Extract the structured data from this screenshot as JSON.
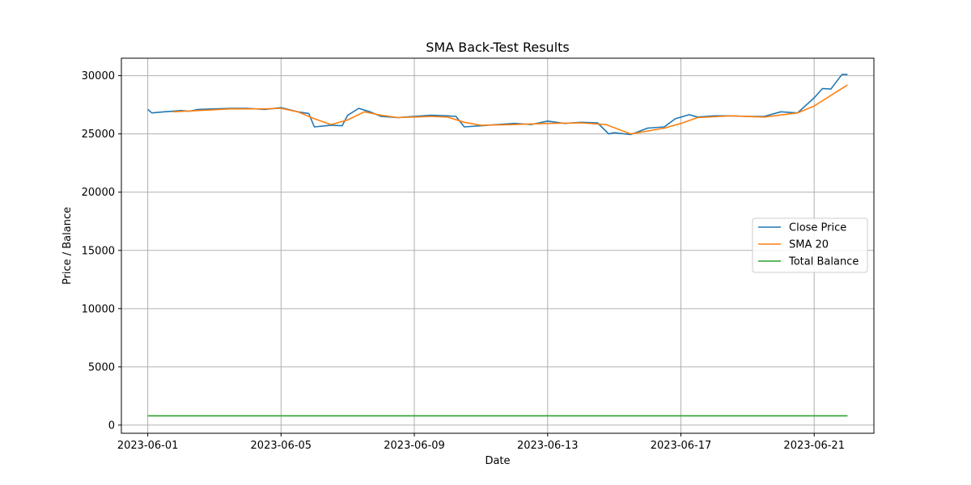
{
  "chart_data": {
    "type": "line",
    "title": "SMA Back-Test Results",
    "xlabel": "Date",
    "ylabel": "Price / Balance",
    "xlim": [
      "2023-05-31T05:00",
      "2023-06-22T19:00"
    ],
    "ylim": [
      -700,
      31500
    ],
    "x_ticks": [
      "2023-06-01",
      "2023-06-05",
      "2023-06-09",
      "2023-06-13",
      "2023-06-17",
      "2023-06-21"
    ],
    "y_ticks": [
      0,
      5000,
      10000,
      15000,
      20000,
      25000,
      30000
    ],
    "grid": true,
    "legend_position": "center-right",
    "series": [
      {
        "name": "Close Price",
        "color": "#1f77b4",
        "points": [
          [
            "2023-06-01T00:00",
            27100
          ],
          [
            "2023-06-01T03:00",
            26800
          ],
          [
            "2023-06-01T12:00",
            26900
          ],
          [
            "2023-06-02T00:00",
            27000
          ],
          [
            "2023-06-02T06:00",
            26950
          ],
          [
            "2023-06-02T12:00",
            27100
          ],
          [
            "2023-06-03T00:00",
            27150
          ],
          [
            "2023-06-03T12:00",
            27200
          ],
          [
            "2023-06-04T00:00",
            27200
          ],
          [
            "2023-06-04T12:00",
            27100
          ],
          [
            "2023-06-05T00:00",
            27250
          ],
          [
            "2023-06-05T12:00",
            26900
          ],
          [
            "2023-06-05T20:00",
            26750
          ],
          [
            "2023-06-06T00:00",
            25600
          ],
          [
            "2023-06-06T12:00",
            25750
          ],
          [
            "2023-06-06T20:00",
            25700
          ],
          [
            "2023-06-07T00:00",
            26600
          ],
          [
            "2023-06-07T08:00",
            27200
          ],
          [
            "2023-06-07T16:00",
            26900
          ],
          [
            "2023-06-08T00:00",
            26500
          ],
          [
            "2023-06-08T12:00",
            26400
          ],
          [
            "2023-06-09T00:00",
            26500
          ],
          [
            "2023-06-09T12:00",
            26600
          ],
          [
            "2023-06-10T00:00",
            26550
          ],
          [
            "2023-06-10T06:00",
            26500
          ],
          [
            "2023-06-10T12:00",
            25600
          ],
          [
            "2023-06-11T00:00",
            25700
          ],
          [
            "2023-06-11T12:00",
            25800
          ],
          [
            "2023-06-12T00:00",
            25900
          ],
          [
            "2023-06-12T12:00",
            25800
          ],
          [
            "2023-06-13T00:00",
            26100
          ],
          [
            "2023-06-13T12:00",
            25900
          ],
          [
            "2023-06-14T00:00",
            26000
          ],
          [
            "2023-06-14T12:00",
            25950
          ],
          [
            "2023-06-14T20:00",
            25000
          ],
          [
            "2023-06-15T00:00",
            25100
          ],
          [
            "2023-06-15T12:00",
            24950
          ],
          [
            "2023-06-16T00:00",
            25500
          ],
          [
            "2023-06-16T12:00",
            25600
          ],
          [
            "2023-06-16T20:00",
            26300
          ],
          [
            "2023-06-17T06:00",
            26650
          ],
          [
            "2023-06-17T12:00",
            26450
          ],
          [
            "2023-06-18T00:00",
            26550
          ],
          [
            "2023-06-18T12:00",
            26550
          ],
          [
            "2023-06-19T00:00",
            26500
          ],
          [
            "2023-06-19T12:00",
            26500
          ],
          [
            "2023-06-20T00:00",
            26900
          ],
          [
            "2023-06-20T12:00",
            26800
          ],
          [
            "2023-06-21T00:00",
            28100
          ],
          [
            "2023-06-21T06:00",
            28900
          ],
          [
            "2023-06-21T12:00",
            28850
          ],
          [
            "2023-06-21T20:00",
            30100
          ],
          [
            "2023-06-22T00:00",
            30100
          ]
        ]
      },
      {
        "name": "SMA 20",
        "color": "#ff7f0e",
        "points": [
          [
            "2023-06-01T18:00",
            26900
          ],
          [
            "2023-06-02T12:00",
            27000
          ],
          [
            "2023-06-03T12:00",
            27150
          ],
          [
            "2023-06-04T12:00",
            27150
          ],
          [
            "2023-06-05T00:00",
            27200
          ],
          [
            "2023-06-05T12:00",
            26900
          ],
          [
            "2023-06-06T00:00",
            26300
          ],
          [
            "2023-06-06T12:00",
            25800
          ],
          [
            "2023-06-07T00:00",
            26200
          ],
          [
            "2023-06-07T12:00",
            26900
          ],
          [
            "2023-06-08T00:00",
            26600
          ],
          [
            "2023-06-08T12:00",
            26400
          ],
          [
            "2023-06-09T12:00",
            26500
          ],
          [
            "2023-06-10T00:00",
            26450
          ],
          [
            "2023-06-10T12:00",
            26000
          ],
          [
            "2023-06-11T00:00",
            25750
          ],
          [
            "2023-06-12T00:00",
            25800
          ],
          [
            "2023-06-13T00:00",
            25900
          ],
          [
            "2023-06-14T00:00",
            25950
          ],
          [
            "2023-06-14T18:00",
            25800
          ],
          [
            "2023-06-15T12:00",
            25000
          ],
          [
            "2023-06-16T12:00",
            25500
          ],
          [
            "2023-06-17T00:00",
            25900
          ],
          [
            "2023-06-17T12:00",
            26400
          ],
          [
            "2023-06-18T12:00",
            26550
          ],
          [
            "2023-06-19T12:00",
            26450
          ],
          [
            "2023-06-20T12:00",
            26800
          ],
          [
            "2023-06-21T00:00",
            27400
          ],
          [
            "2023-06-21T12:00",
            28300
          ],
          [
            "2023-06-22T00:00",
            29200
          ]
        ]
      },
      {
        "name": "Total Balance",
        "color": "#2ca02c",
        "points": [
          [
            "2023-06-01T00:00",
            800
          ],
          [
            "2023-06-22T00:00",
            800
          ]
        ]
      }
    ]
  }
}
